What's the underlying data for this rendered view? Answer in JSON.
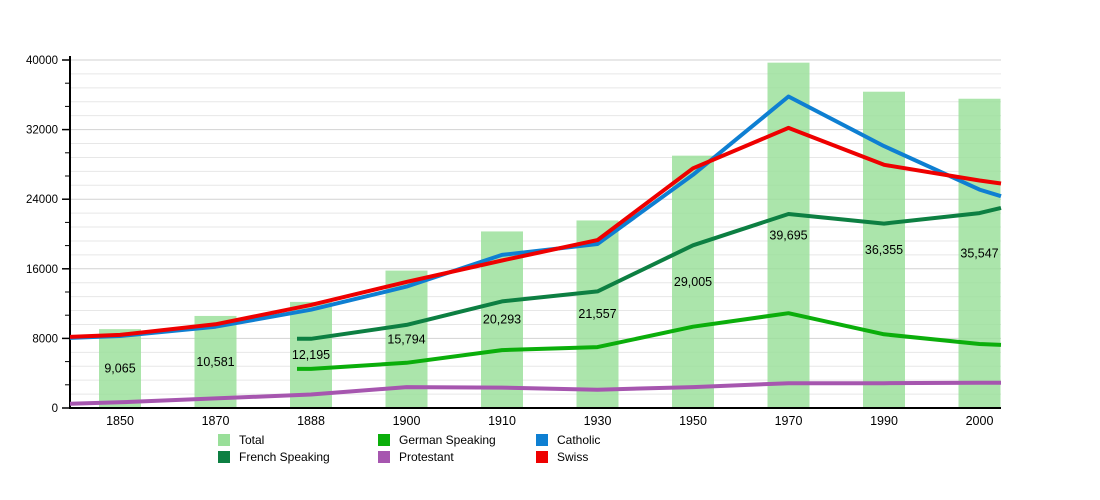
{
  "chart_data": {
    "type": "bar+line",
    "title": "",
    "categories": [
      "1850",
      "1870",
      "1888",
      "1900",
      "1910",
      "1930",
      "1950",
      "1970",
      "1990",
      "2000"
    ],
    "y_axis": {
      "min": 0,
      "max": 40000,
      "major_step": 8000,
      "ticks": [
        {
          "value": 0,
          "label": "0"
        },
        {
          "value": 8000,
          "label": "8000"
        },
        {
          "value": 16000,
          "label": "16000"
        },
        {
          "value": 24000,
          "label": "24000"
        },
        {
          "value": 32000,
          "label": "32000"
        },
        {
          "value": 40000,
          "label": "40000"
        }
      ]
    },
    "grid": true,
    "bars": {
      "name": "Total",
      "color": "#99df99",
      "values": [
        9065,
        10581,
        12195,
        15794,
        20293,
        21557,
        29005,
        39695,
        36355,
        35547
      ],
      "value_labels": [
        "9,065",
        "10,581",
        "12,195",
        "15,794",
        "20,293",
        "21,557",
        "29,005",
        "39,695",
        "36,355",
        "35,547"
      ]
    },
    "series": [
      {
        "name": "Protestant",
        "color": "#a656af",
        "values": [
          650,
          1100,
          1550,
          2400,
          2350,
          2100,
          2400,
          2850,
          2850,
          2900
        ],
        "edge_left": 480,
        "edge_right": 2910
      },
      {
        "name": "German Speaking",
        "color": "#0bae0b",
        "values": [
          null,
          null,
          4500,
          5200,
          6650,
          7000,
          9350,
          10900,
          8470,
          7360
        ],
        "edge_left": null,
        "edge_right": 7250
      },
      {
        "name": "French Speaking",
        "color": "#0d7f42",
        "values": [
          null,
          null,
          7950,
          9550,
          12250,
          13400,
          18700,
          22300,
          21200,
          22400
        ],
        "edge_left": null,
        "edge_right": 23000
      },
      {
        "name": "Catholic",
        "color": "#0e7fd2",
        "values": [
          8280,
          9350,
          11300,
          13950,
          17600,
          18850,
          26800,
          35800,
          30100,
          25100
        ],
        "edge_left": 8060,
        "edge_right": 24350
      },
      {
        "name": "Swiss",
        "color": "#ee0000",
        "values": [
          8400,
          9620,
          11850,
          14500,
          16950,
          19300,
          27550,
          32200,
          27950,
          26150
        ],
        "edge_left": 8170,
        "edge_right": 25800
      }
    ],
    "legend": {
      "position": "bottom",
      "items": [
        {
          "label": "Total",
          "color": "#99df99",
          "swatch": "bar"
        },
        {
          "label": "French Speaking",
          "color": "#0d7f42",
          "swatch": "line"
        },
        {
          "label": "German Speaking",
          "color": "#0bae0b",
          "swatch": "line"
        },
        {
          "label": "Protestant",
          "color": "#a656af",
          "swatch": "line"
        },
        {
          "label": "Catholic",
          "color": "#0e7fd2",
          "swatch": "line"
        },
        {
          "label": "Swiss",
          "color": "#ee0000",
          "swatch": "line"
        }
      ]
    }
  }
}
